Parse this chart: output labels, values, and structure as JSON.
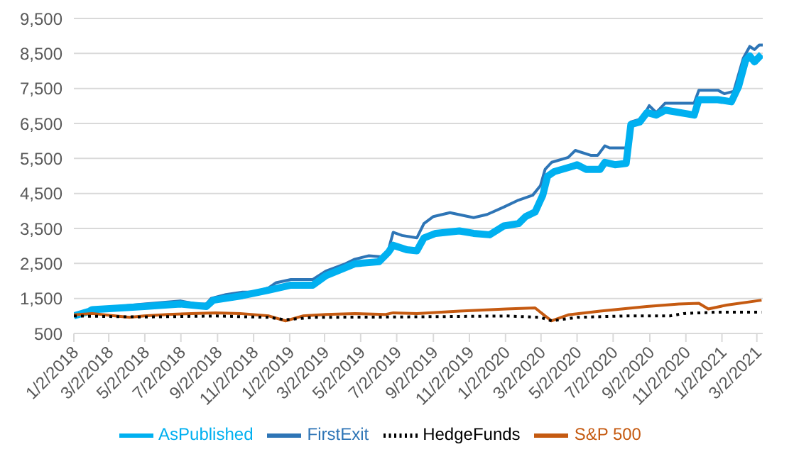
{
  "chart_data": {
    "type": "line",
    "xlim": [
      "2018-01-02",
      "2021-03-12"
    ],
    "xticks": [
      {
        "value": "2018-01-02",
        "label": "1/2/2018"
      },
      {
        "value": "2018-03-02",
        "label": "3/2/2018"
      },
      {
        "value": "2018-05-02",
        "label": "5/2/2018"
      },
      {
        "value": "2018-07-02",
        "label": "7/2/2018"
      },
      {
        "value": "2018-09-02",
        "label": "9/2/2018"
      },
      {
        "value": "2018-11-02",
        "label": "11/2/2018"
      },
      {
        "value": "2019-01-02",
        "label": "1/2/2019"
      },
      {
        "value": "2019-03-02",
        "label": "3/2/2019"
      },
      {
        "value": "2019-05-02",
        "label": "5/2/2019"
      },
      {
        "value": "2019-07-02",
        "label": "7/2/2019"
      },
      {
        "value": "2019-09-02",
        "label": "9/2/2019"
      },
      {
        "value": "2019-11-02",
        "label": "11/2/2019"
      },
      {
        "value": "2020-01-02",
        "label": "1/2/2020"
      },
      {
        "value": "2020-03-02",
        "label": "3/2/2020"
      },
      {
        "value": "2020-05-02",
        "label": "5/2/2020"
      },
      {
        "value": "2020-07-02",
        "label": "7/2/2020"
      },
      {
        "value": "2020-09-02",
        "label": "9/2/2020"
      },
      {
        "value": "2020-11-02",
        "label": "11/2/2020"
      },
      {
        "value": "2021-01-02",
        "label": "1/2/2021"
      },
      {
        "value": "2021-03-02",
        "label": "3/2/2021"
      }
    ],
    "ylim": [
      500,
      9500
    ],
    "yticks": [
      {
        "value": 500,
        "label": "500"
      },
      {
        "value": 1500,
        "label": "1,500"
      },
      {
        "value": 2500,
        "label": "2,500"
      },
      {
        "value": 3500,
        "label": "3,500"
      },
      {
        "value": 4500,
        "label": "4,500"
      },
      {
        "value": 5500,
        "label": "5,500"
      },
      {
        "value": 6500,
        "label": "6,500"
      },
      {
        "value": 7500,
        "label": "7,500"
      },
      {
        "value": 8500,
        "label": "8,500"
      },
      {
        "value": 9500,
        "label": "9,500"
      }
    ],
    "grid": "y",
    "legend": "bottom",
    "marker": "none",
    "series": [
      {
        "name": "FirstExit",
        "color": "#2e75b6",
        "line_style": "solid",
        "x": [
          "2018-01-02",
          "2018-01-28",
          "2018-02-02",
          "2018-05-01",
          "2018-07-01",
          "2018-07-28",
          "2018-08-14",
          "2018-08-22",
          "2018-09-16",
          "2018-10-14",
          "2018-11-04",
          "2018-11-28",
          "2018-12-10",
          "2019-01-04",
          "2019-02-10",
          "2019-03-04",
          "2019-04-06",
          "2019-04-22",
          "2019-05-16",
          "2019-06-07",
          "2019-06-18",
          "2019-06-26",
          "2019-07-11",
          "2019-08-05",
          "2019-08-17",
          "2019-09-02",
          "2019-09-30",
          "2019-11-09",
          "2019-12-02",
          "2019-12-30",
          "2020-01-24",
          "2020-02-17",
          "2020-03-01",
          "2020-03-09",
          "2020-03-20",
          "2020-04-17",
          "2020-04-29",
          "2020-05-25",
          "2020-06-06",
          "2020-06-18",
          "2020-06-26",
          "2020-07-24",
          "2020-08-01",
          "2020-08-20",
          "2020-09-01",
          "2020-09-13",
          "2020-09-28",
          "2020-11-16",
          "2020-11-24",
          "2020-12-26",
          "2021-01-06",
          "2021-01-22",
          "2021-02-07",
          "2021-02-18",
          "2021-02-26",
          "2021-03-06",
          "2021-03-12"
        ],
        "values": [
          1000,
          1135,
          1200,
          1340,
          1430,
          1340,
          1340,
          1500,
          1610,
          1680,
          1680,
          1810,
          1950,
          2040,
          2040,
          2280,
          2490,
          2620,
          2720,
          2690,
          2890,
          3390,
          3300,
          3230,
          3640,
          3840,
          3950,
          3810,
          3900,
          4110,
          4310,
          4450,
          4720,
          5190,
          5390,
          5530,
          5730,
          5590,
          5590,
          5860,
          5800,
          5800,
          6540,
          6640,
          7010,
          6810,
          7080,
          7080,
          7450,
          7450,
          7350,
          7420,
          8360,
          8700,
          8610,
          8740,
          8740
        ]
      },
      {
        "name": "AsPublished",
        "color": "#00b0f0",
        "line_style": "solid",
        "x": [
          "2018-01-02",
          "2018-01-28",
          "2018-02-02",
          "2018-05-01",
          "2018-07-01",
          "2018-08-14",
          "2018-08-26",
          "2018-10-14",
          "2018-11-28",
          "2019-01-04",
          "2019-02-10",
          "2019-03-04",
          "2019-04-22",
          "2019-06-02",
          "2019-06-18",
          "2019-06-26",
          "2019-07-19",
          "2019-08-05",
          "2019-08-17",
          "2019-09-06",
          "2019-10-16",
          "2019-11-09",
          "2019-12-06",
          "2019-12-30",
          "2020-01-24",
          "2020-02-05",
          "2020-02-21",
          "2020-03-05",
          "2020-03-13",
          "2020-03-24",
          "2020-04-25",
          "2020-05-02",
          "2020-05-17",
          "2020-06-10",
          "2020-06-18",
          "2020-07-05",
          "2020-07-24",
          "2020-08-01",
          "2020-08-16",
          "2020-08-28",
          "2020-09-13",
          "2020-09-28",
          "2020-11-16",
          "2020-11-24",
          "2020-12-26",
          "2021-01-18",
          "2021-01-30",
          "2021-02-11",
          "2021-02-18",
          "2021-02-26",
          "2021-03-10"
        ],
        "values": [
          1000,
          1135,
          1180,
          1270,
          1340,
          1270,
          1450,
          1580,
          1740,
          1880,
          1880,
          2150,
          2490,
          2550,
          2820,
          3020,
          2890,
          2860,
          3230,
          3360,
          3430,
          3360,
          3320,
          3570,
          3640,
          3840,
          3970,
          4450,
          4990,
          5120,
          5280,
          5320,
          5190,
          5190,
          5390,
          5320,
          5360,
          6470,
          6540,
          6810,
          6740,
          6880,
          6740,
          7180,
          7180,
          7120,
          7550,
          8300,
          8430,
          8260,
          8470
        ]
      },
      {
        "name": "S&P 500",
        "color": "#c55a11",
        "line_style": "solid",
        "x": [
          "2018-01-02",
          "2018-02-02",
          "2018-03-13",
          "2018-04-06",
          "2018-05-01",
          "2018-06-10",
          "2018-07-20",
          "2018-08-30",
          "2018-10-10",
          "2018-11-28",
          "2018-12-26",
          "2019-01-24",
          "2019-03-04",
          "2019-04-22",
          "2019-06-12",
          "2019-06-26",
          "2019-08-05",
          "2019-10-16",
          "2020-01-03",
          "2020-02-21",
          "2020-03-09",
          "2020-03-20",
          "2020-04-17",
          "2020-06-10",
          "2020-08-28",
          "2020-10-21",
          "2020-11-24",
          "2020-12-10",
          "2021-01-10",
          "2021-03-10"
        ],
        "values": [
          1030,
          1070,
          1000,
          960,
          1000,
          1040,
          1070,
          1090,
          1070,
          1000,
          860,
          1000,
          1040,
          1070,
          1040,
          1090,
          1070,
          1140,
          1200,
          1230,
          1000,
          860,
          1030,
          1140,
          1270,
          1340,
          1360,
          1200,
          1310,
          1450
        ]
      },
      {
        "name": "HedgeFunds",
        "color": "#000000",
        "line_style": "dotted",
        "x": [
          "2018-01-02",
          "2018-05-01",
          "2018-08-30",
          "2018-11-28",
          "2018-12-26",
          "2019-02-10",
          "2019-06-26",
          "2020-01-03",
          "2020-03-01",
          "2020-03-20",
          "2020-05-02",
          "2020-07-20",
          "2020-10-06",
          "2020-10-29",
          "2020-12-26",
          "2021-03-10"
        ],
        "values": [
          1000,
          970,
          1000,
          960,
          890,
          960,
          970,
          1000,
          960,
          860,
          960,
          1000,
          1000,
          1070,
          1110,
          1110
        ]
      }
    ]
  }
}
